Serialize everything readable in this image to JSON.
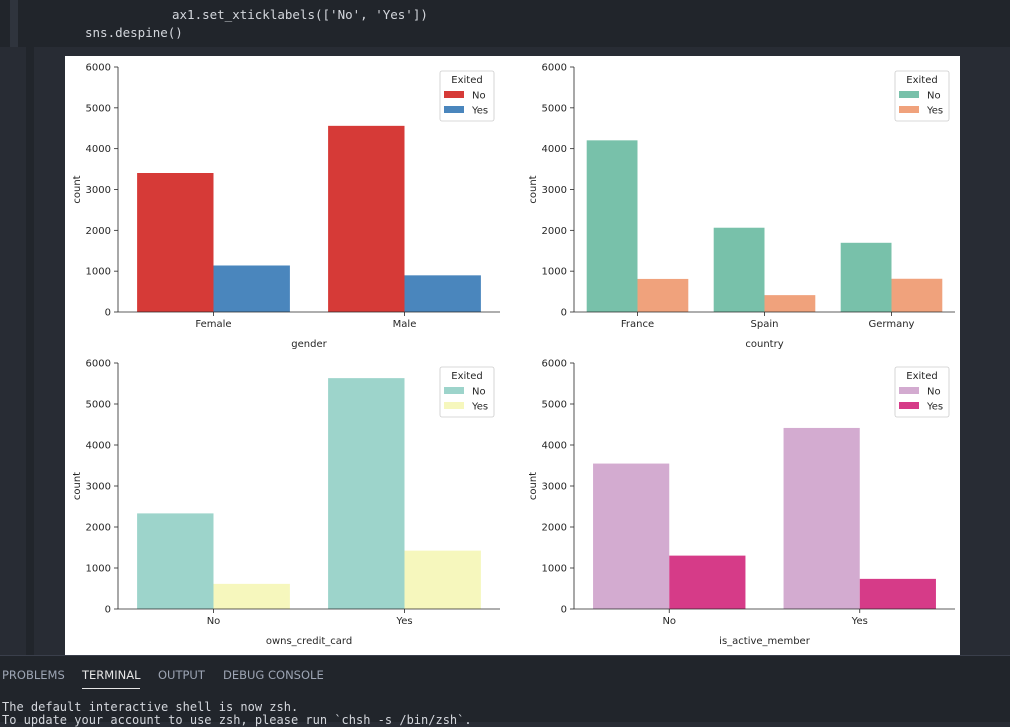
{
  "code": {
    "lines": [
      "ax1.set_xticklabels(['No', 'Yes'])",
      "sns.despine()"
    ]
  },
  "chart_data": [
    {
      "type": "bar",
      "categories": [
        "Female",
        "Male"
      ],
      "xlabel": "gender",
      "ylabel": "count",
      "ylim": [
        0,
        6000
      ],
      "yticks": [
        0,
        1000,
        2000,
        3000,
        4000,
        5000,
        6000
      ],
      "legend_title": "Exited",
      "legend": "upper right",
      "series": [
        {
          "name": "No",
          "color": "#d63a37",
          "values": [
            3404,
            4559
          ]
        },
        {
          "name": "Yes",
          "color": "#4a86bd",
          "values": [
            1139,
            898
          ]
        }
      ]
    },
    {
      "type": "bar",
      "categories": [
        "France",
        "Spain",
        "Germany"
      ],
      "xlabel": "country",
      "ylabel": "count",
      "ylim": [
        0,
        6000
      ],
      "yticks": [
        0,
        1000,
        2000,
        3000,
        4000,
        5000,
        6000
      ],
      "legend_title": "Exited",
      "legend": "upper right",
      "series": [
        {
          "name": "No",
          "color": "#78c1aa",
          "values": [
            4204,
            2064,
            1695
          ]
        },
        {
          "name": "Yes",
          "color": "#f0a27c",
          "values": [
            810,
            413,
            814
          ]
        }
      ]
    },
    {
      "type": "bar",
      "categories": [
        "No",
        "Yes"
      ],
      "xlabel": "owns_credit_card",
      "ylabel": "count",
      "ylim": [
        0,
        6000
      ],
      "yticks": [
        0,
        1000,
        2000,
        3000,
        4000,
        5000,
        6000
      ],
      "legend_title": "Exited",
      "legend": "upper right",
      "series": [
        {
          "name": "No",
          "color": "#9dd4cb",
          "values": [
            2332,
            5631
          ]
        },
        {
          "name": "Yes",
          "color": "#f6f7bd",
          "values": [
            613,
            1424
          ]
        }
      ]
    },
    {
      "type": "bar",
      "categories": [
        "No",
        "Yes"
      ],
      "xlabel": "is_active_member",
      "ylabel": "count",
      "ylim": [
        0,
        6000
      ],
      "yticks": [
        0,
        1000,
        2000,
        3000,
        4000,
        5000,
        6000
      ],
      "legend_title": "Exited",
      "legend": "upper right",
      "series": [
        {
          "name": "No",
          "color": "#d3abd0",
          "values": [
            3547,
            4416
          ]
        },
        {
          "name": "Yes",
          "color": "#d63b88",
          "values": [
            1302,
            735
          ]
        }
      ]
    }
  ],
  "panel": {
    "tabs": [
      "PROBLEMS",
      "TERMINAL",
      "OUTPUT",
      "DEBUG CONSOLE"
    ],
    "active_tab": 1,
    "terminal": [
      "The default interactive shell is now zsh.",
      "To update your account to use zsh, please run `chsh -s /bin/zsh`."
    ]
  }
}
